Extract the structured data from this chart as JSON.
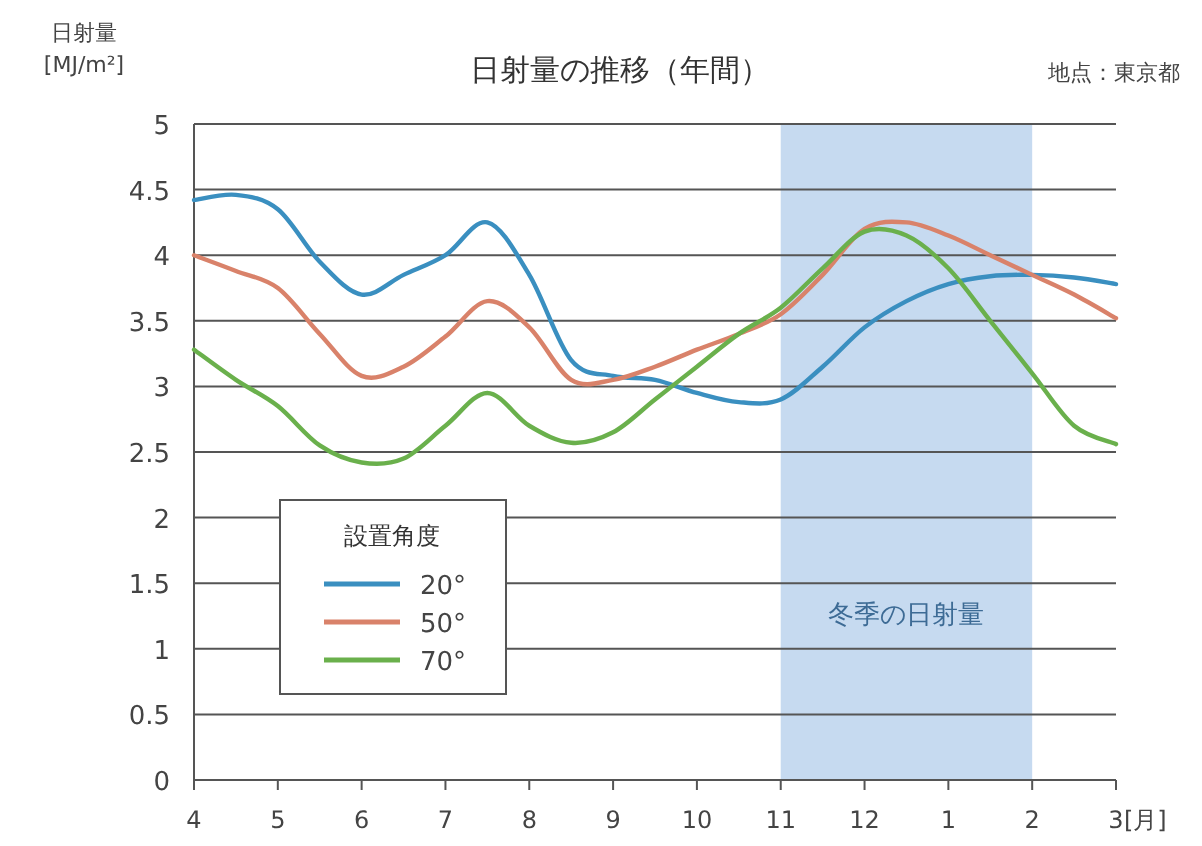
{
  "chart_data": {
    "type": "line",
    "title": "日射量の推移（年間）",
    "ylabel": "日射量 [MJ/m²]",
    "xlabel": "[月]",
    "legend_title": "設置角度",
    "annotations": [
      "地点：東京都"
    ],
    "categories": [
      "4",
      null,
      "5",
      null,
      "6",
      null,
      "7",
      null,
      "8",
      null,
      "9",
      null,
      "10",
      null,
      "11",
      null,
      "12",
      null,
      "1",
      null,
      "2",
      null,
      "3"
    ],
    "ylim": [
      0,
      5
    ],
    "yticks": [
      0,
      0.5,
      1,
      1.5,
      2,
      2.5,
      3,
      3.5,
      4,
      4.5,
      5
    ],
    "grid": "y",
    "legend": "bottom left",
    "marker": "none",
    "line_style": "solid",
    "bands": [
      {
        "axis": "x",
        "from": "11",
        "to": "2",
        "label": "冬季の日射量",
        "color": "#c6daf0"
      }
    ],
    "series": [
      {
        "name": "20°",
        "color": "#3a8fc0",
        "values": [
          4.42,
          4.46,
          4.35,
          3.95,
          3.7,
          3.85,
          4.0,
          4.25,
          3.85,
          3.2,
          3.08,
          3.05,
          2.95,
          2.88,
          2.9,
          3.15,
          3.45,
          3.65,
          3.78,
          3.84,
          3.85,
          3.83,
          3.78
        ]
      },
      {
        "name": "50°",
        "color": "#d9826a",
        "values": [
          4.0,
          3.88,
          3.75,
          3.4,
          3.08,
          3.15,
          3.38,
          3.65,
          3.45,
          3.05,
          3.05,
          3.15,
          3.28,
          3.4,
          3.55,
          3.85,
          4.2,
          4.25,
          4.15,
          4.0,
          3.85,
          3.7,
          3.52
        ]
      },
      {
        "name": "70°",
        "color": "#6ab04c",
        "values": [
          3.28,
          3.05,
          2.85,
          2.55,
          2.42,
          2.45,
          2.7,
          2.95,
          2.7,
          2.57,
          2.65,
          2.9,
          3.15,
          3.4,
          3.6,
          3.9,
          4.18,
          4.15,
          3.9,
          3.5,
          3.1,
          2.7,
          2.56
        ]
      }
    ]
  }
}
